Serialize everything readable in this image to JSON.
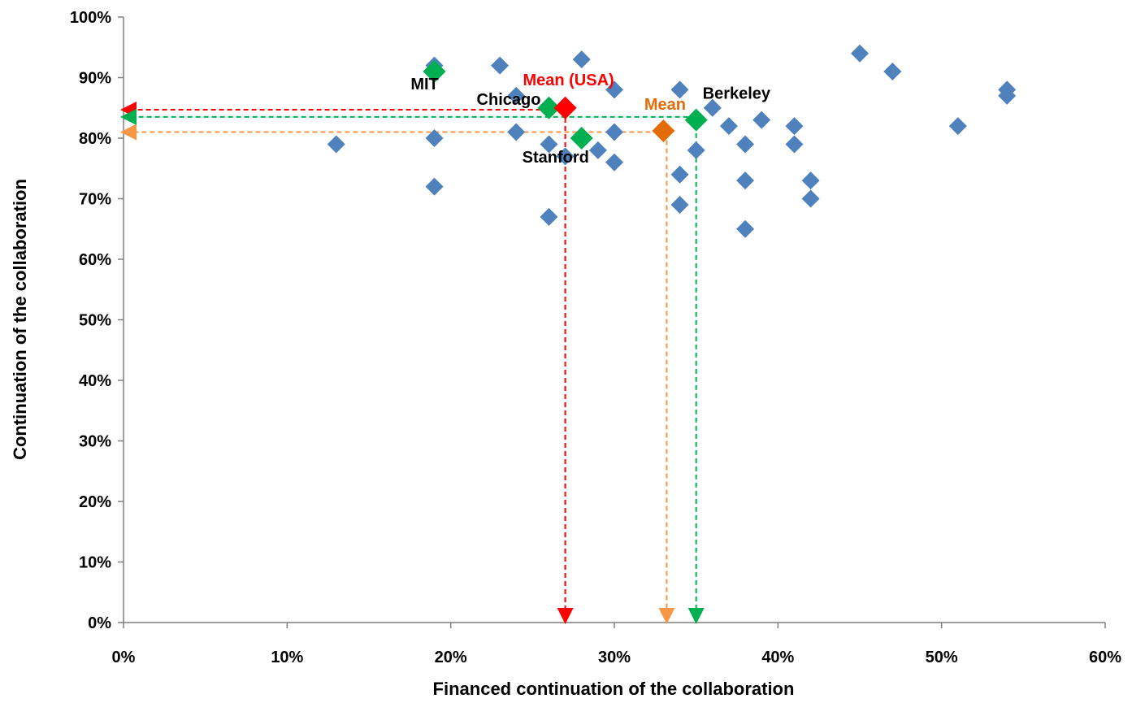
{
  "chart_data": {
    "type": "scatter",
    "title": "",
    "xlabel": "Financed continuation of the collaboration",
    "ylabel": "Continuation of the collaboration",
    "xlim": [
      0,
      60
    ],
    "ylim": [
      0,
      100
    ],
    "xticks": [
      "0%",
      "10%",
      "20%",
      "30%",
      "40%",
      "50%",
      "60%"
    ],
    "yticks": [
      "0%",
      "10%",
      "20%",
      "30%",
      "40%",
      "50%",
      "60%",
      "70%",
      "80%",
      "90%",
      "100%"
    ],
    "grid": false,
    "legend": "none",
    "series": [
      {
        "color": "#4F81BD",
        "marker": "diamond",
        "points": [
          {
            "x": 13,
            "y": 79
          },
          {
            "x": 19,
            "y": 92
          },
          {
            "x": 19,
            "y": 80
          },
          {
            "x": 19,
            "y": 72
          },
          {
            "x": 23,
            "y": 92
          },
          {
            "x": 24,
            "y": 87
          },
          {
            "x": 24,
            "y": 81
          },
          {
            "x": 26,
            "y": 79
          },
          {
            "x": 26,
            "y": 67
          },
          {
            "x": 27,
            "y": 77
          },
          {
            "x": 28,
            "y": 93
          },
          {
            "x": 29,
            "y": 78
          },
          {
            "x": 30,
            "y": 88
          },
          {
            "x": 30,
            "y": 81
          },
          {
            "x": 30,
            "y": 76
          },
          {
            "x": 34,
            "y": 88
          },
          {
            "x": 34,
            "y": 74
          },
          {
            "x": 34,
            "y": 69
          },
          {
            "x": 35,
            "y": 78
          },
          {
            "x": 36,
            "y": 85
          },
          {
            "x": 37,
            "y": 82
          },
          {
            "x": 38,
            "y": 79
          },
          {
            "x": 38,
            "y": 73
          },
          {
            "x": 38,
            "y": 65
          },
          {
            "x": 39,
            "y": 83
          },
          {
            "x": 41,
            "y": 82
          },
          {
            "x": 41,
            "y": 79
          },
          {
            "x": 42,
            "y": 73
          },
          {
            "x": 42,
            "y": 70
          },
          {
            "x": 45,
            "y": 94
          },
          {
            "x": 47,
            "y": 91
          },
          {
            "x": 51,
            "y": 82
          },
          {
            "x": 54,
            "y": 88
          },
          {
            "x": 54,
            "y": 87
          }
        ]
      },
      {
        "color": "#00B050",
        "marker": "diamond",
        "points": [
          {
            "x": 19,
            "y": 91,
            "label": "MIT"
          },
          {
            "x": 26,
            "y": 85,
            "label": "Chicago"
          },
          {
            "x": 28,
            "y": 80,
            "label": "Stanford"
          },
          {
            "x": 35,
            "y": 83,
            "label": "Berkeley"
          }
        ]
      },
      {
        "color": "#FF0000",
        "marker": "diamond",
        "points": [
          {
            "x": 27,
            "y": 85,
            "label": "Mean (USA)"
          }
        ]
      },
      {
        "color": "#E36C09",
        "marker": "diamond",
        "points": [
          {
            "x": 33,
            "y": 81.2,
            "label": "Mean"
          }
        ]
      }
    ],
    "guides": [
      {
        "color": "#FF0000",
        "x": 27,
        "y": 84.7
      },
      {
        "color": "#F79646",
        "x": 33.2,
        "y": 81
      },
      {
        "color": "#00B050",
        "x": 35,
        "y": 83.5
      }
    ]
  }
}
